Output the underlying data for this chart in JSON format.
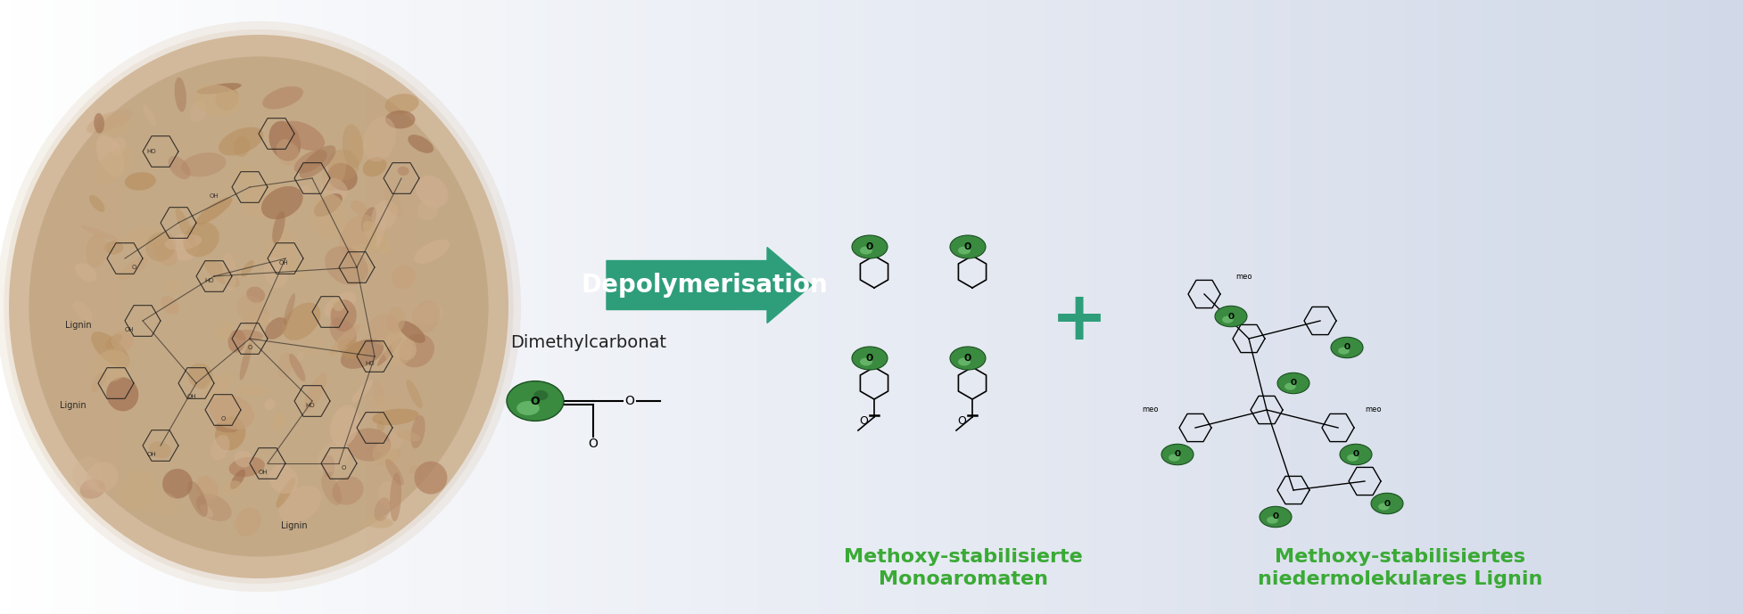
{
  "bg_color_left": "#ffffff",
  "bg_color_right": "#d4dce8",
  "arrow_color": "#2e9e7a",
  "arrow_text": "Depolymerisation",
  "arrow_text_color": "#ffffff",
  "dmc_label": "Dimethylcarbonat",
  "dmc_label_color": "#222222",
  "mono_title": "Methoxy-stabilisierte\nMonoaromaten",
  "mono_title_color": "#3aaa35",
  "oligo_title": "Methoxy-stabilisiertes\nniedermolekulares Lignin",
  "oligo_title_color": "#3aaa35",
  "plus_color": "#2e9e7a",
  "lignin_circle_color": "#c8a882",
  "lignin_texture_color": "#a0896a",
  "green_ball_color_outer": "#2d7a3a",
  "green_ball_color_inner": "#6ec86e"
}
